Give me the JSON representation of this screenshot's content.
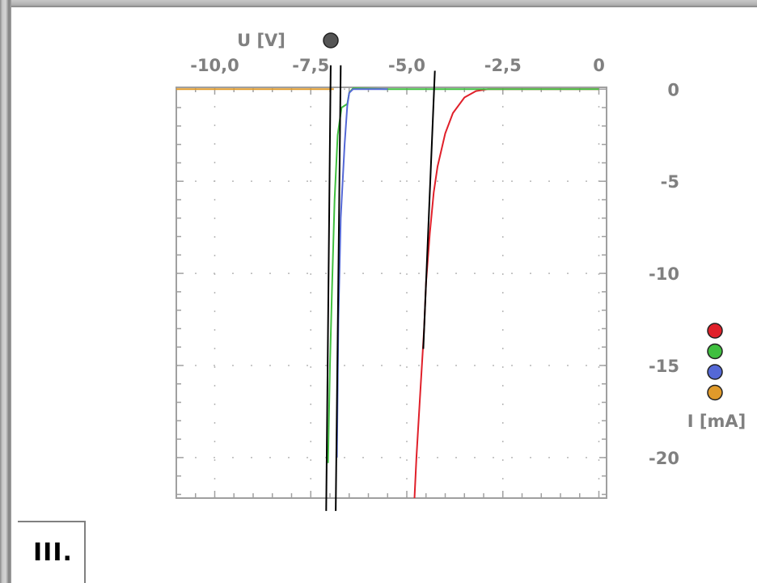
{
  "chart_data": {
    "type": "line",
    "x_axis": {
      "label": "U [V]",
      "range": [
        -11.0,
        0.2
      ],
      "tick_values": [
        -10,
        -7.5,
        -5,
        -2.5,
        0
      ],
      "tick_labels": [
        "-10,0",
        "-7,5",
        "-5,0",
        "-2,5",
        "0"
      ],
      "position": "top"
    },
    "y_axis": {
      "label": "I [mA]",
      "range": [
        -22.2,
        0.1
      ],
      "tick_values": [
        0,
        -5,
        -10,
        -15,
        -20
      ],
      "tick_labels": [
        "0",
        "-5",
        "-10",
        "-15",
        "-20"
      ],
      "position": "right"
    },
    "grid": true,
    "x_marker_color": "#555555",
    "legend_placement": "right",
    "series": [
      {
        "color": "#e0202a",
        "points": [
          [
            0,
            0
          ],
          [
            -2.5,
            0
          ],
          [
            -2.9,
            0
          ],
          [
            -3.2,
            -0.1
          ],
          [
            -3.5,
            -0.45
          ],
          [
            -3.8,
            -1.3
          ],
          [
            -4.0,
            -2.4
          ],
          [
            -4.2,
            -4.2
          ],
          [
            -4.3,
            -5.6
          ],
          [
            -4.4,
            -7.8
          ],
          [
            -4.5,
            -10.5
          ],
          [
            -4.55,
            -13.0
          ],
          [
            -4.65,
            -16.5
          ],
          [
            -4.75,
            -20.0
          ],
          [
            -4.8,
            -22.2
          ]
        ]
      },
      {
        "color": "#3fbf3f",
        "points": [
          [
            0,
            0
          ],
          [
            -5.5,
            0
          ],
          [
            -6.4,
            0.05
          ],
          [
            -6.5,
            -0.2
          ],
          [
            -6.55,
            -0.8
          ],
          [
            -6.7,
            -1.0
          ],
          [
            -6.8,
            -2.5
          ],
          [
            -6.88,
            -6.0
          ],
          [
            -6.95,
            -11.0
          ],
          [
            -7.0,
            -15.0
          ],
          [
            -7.05,
            -20.3
          ]
        ]
      },
      {
        "color": "#5468d6",
        "points": [
          [
            -5.5,
            0
          ],
          [
            -6.4,
            0
          ],
          [
            -6.5,
            -0.2
          ],
          [
            -6.55,
            -0.9
          ],
          [
            -6.62,
            -3.0
          ],
          [
            -6.72,
            -7.0
          ],
          [
            -6.78,
            -12.5
          ],
          [
            -6.82,
            -20.0
          ]
        ]
      },
      {
        "color": "#e09a2a",
        "points": [
          [
            -11.0,
            0
          ],
          [
            -7.5,
            0
          ],
          [
            -6.9,
            0
          ]
        ]
      }
    ],
    "fit_lines": [
      {
        "color": "#000000",
        "points": [
          [
            -6.98,
            1.3
          ],
          [
            -7.1,
            -22.9
          ]
        ]
      },
      {
        "color": "#000000",
        "points": [
          [
            -6.72,
            1.3
          ],
          [
            -6.85,
            -22.9
          ]
        ]
      },
      {
        "color": "#000000",
        "points": [
          [
            -4.27,
            1.0
          ],
          [
            -4.57,
            -14.1
          ]
        ]
      }
    ]
  },
  "legend": [
    {
      "color": "#e0202a"
    },
    {
      "color": "#3fbf3f"
    },
    {
      "color": "#5468d6"
    },
    {
      "color": "#e09a2a"
    }
  ],
  "panel_label": "III."
}
